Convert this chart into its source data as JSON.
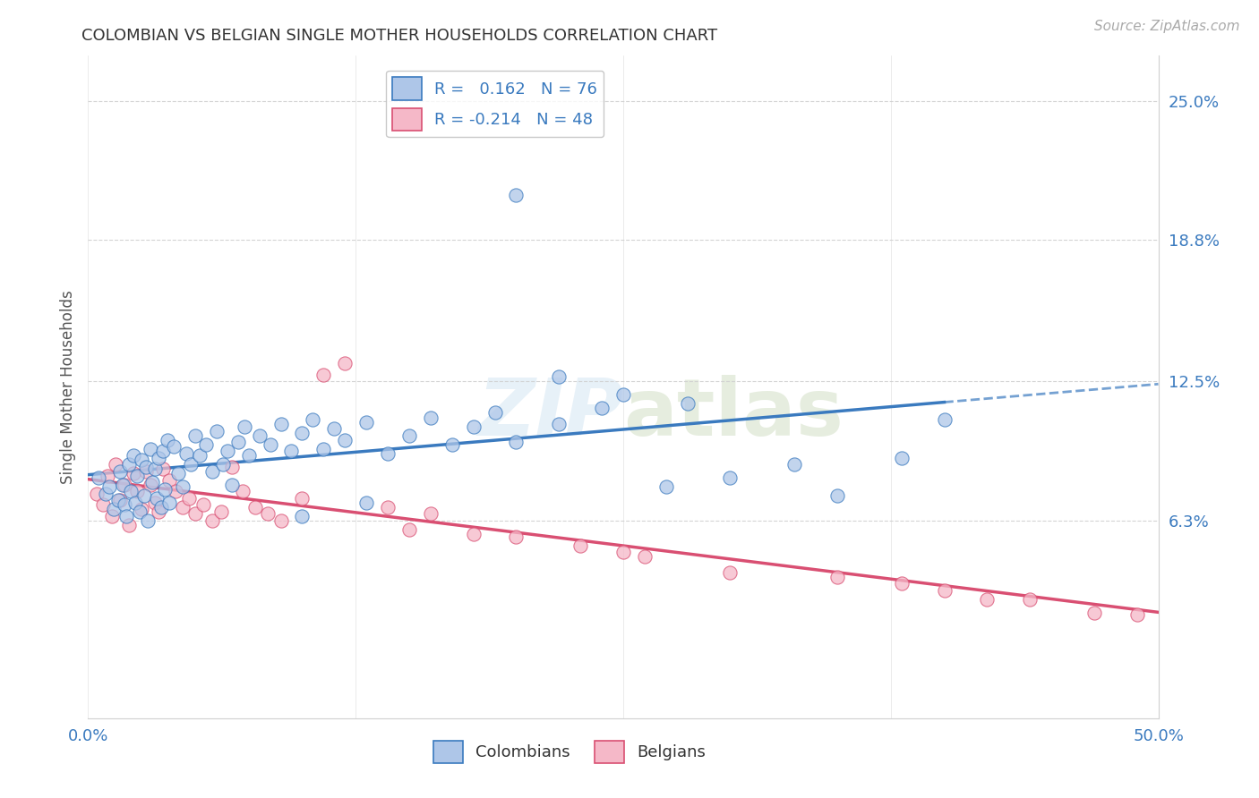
{
  "title": "COLOMBIAN VS BELGIAN SINGLE MOTHER HOUSEHOLDS CORRELATION CHART",
  "source": "Source: ZipAtlas.com",
  "ylabel": "Single Mother Households",
  "xlim": [
    0.0,
    0.5
  ],
  "ylim": [
    -0.025,
    0.27
  ],
  "ytick_labels": [
    "6.3%",
    "12.5%",
    "18.8%",
    "25.0%"
  ],
  "ytick_values": [
    0.063,
    0.125,
    0.188,
    0.25
  ],
  "xtick_positions": [
    0.0,
    0.125,
    0.25,
    0.375,
    0.5
  ],
  "colombian_R": 0.162,
  "colombian_N": 76,
  "belgian_R": -0.214,
  "belgian_N": 48,
  "colombian_color": "#aec6e8",
  "belgian_color": "#f5b8c8",
  "colombian_line_color": "#3a7abf",
  "belgian_line_color": "#d94f72",
  "legend_label_colombian": "Colombians",
  "legend_label_belgian": "Belgians",
  "background_color": "#ffffff",
  "grid_color": "#d0d0d0",
  "colombian_scatter_x": [
    0.005,
    0.008,
    0.01,
    0.012,
    0.014,
    0.015,
    0.016,
    0.017,
    0.018,
    0.019,
    0.02,
    0.021,
    0.022,
    0.023,
    0.024,
    0.025,
    0.026,
    0.027,
    0.028,
    0.029,
    0.03,
    0.031,
    0.032,
    0.033,
    0.034,
    0.035,
    0.036,
    0.037,
    0.038,
    0.04,
    0.042,
    0.044,
    0.046,
    0.048,
    0.05,
    0.052,
    0.055,
    0.058,
    0.06,
    0.063,
    0.065,
    0.067,
    0.07,
    0.073,
    0.075,
    0.08,
    0.085,
    0.09,
    0.095,
    0.1,
    0.105,
    0.11,
    0.115,
    0.12,
    0.13,
    0.14,
    0.15,
    0.16,
    0.17,
    0.18,
    0.19,
    0.2,
    0.22,
    0.24,
    0.27,
    0.3,
    0.33,
    0.35,
    0.38,
    0.4,
    0.22,
    0.25,
    0.28,
    0.1,
    0.13,
    0.2
  ],
  "colombian_scatter_y": [
    0.082,
    0.075,
    0.078,
    0.068,
    0.072,
    0.085,
    0.079,
    0.07,
    0.065,
    0.088,
    0.076,
    0.092,
    0.071,
    0.083,
    0.067,
    0.09,
    0.074,
    0.087,
    0.063,
    0.095,
    0.08,
    0.086,
    0.073,
    0.091,
    0.069,
    0.094,
    0.077,
    0.099,
    0.071,
    0.096,
    0.084,
    0.078,
    0.093,
    0.088,
    0.101,
    0.092,
    0.097,
    0.085,
    0.103,
    0.088,
    0.094,
    0.079,
    0.098,
    0.105,
    0.092,
    0.101,
    0.097,
    0.106,
    0.094,
    0.102,
    0.108,
    0.095,
    0.104,
    0.099,
    0.107,
    0.093,
    0.101,
    0.109,
    0.097,
    0.105,
    0.111,
    0.098,
    0.106,
    0.113,
    0.078,
    0.082,
    0.088,
    0.074,
    0.091,
    0.108,
    0.127,
    0.119,
    0.115,
    0.065,
    0.071,
    0.208
  ],
  "belgian_scatter_x": [
    0.004,
    0.007,
    0.009,
    0.011,
    0.013,
    0.015,
    0.017,
    0.019,
    0.021,
    0.023,
    0.025,
    0.027,
    0.029,
    0.031,
    0.033,
    0.035,
    0.038,
    0.041,
    0.044,
    0.047,
    0.05,
    0.054,
    0.058,
    0.062,
    0.067,
    0.072,
    0.078,
    0.084,
    0.09,
    0.1,
    0.11,
    0.12,
    0.14,
    0.16,
    0.18,
    0.2,
    0.23,
    0.26,
    0.3,
    0.35,
    0.4,
    0.44,
    0.47,
    0.49,
    0.15,
    0.25,
    0.38,
    0.42
  ],
  "belgian_scatter_y": [
    0.075,
    0.07,
    0.083,
    0.065,
    0.088,
    0.072,
    0.079,
    0.061,
    0.084,
    0.076,
    0.068,
    0.085,
    0.079,
    0.071,
    0.067,
    0.086,
    0.081,
    0.076,
    0.069,
    0.073,
    0.066,
    0.07,
    0.063,
    0.067,
    0.087,
    0.076,
    0.069,
    0.066,
    0.063,
    0.073,
    0.128,
    0.133,
    0.069,
    0.066,
    0.057,
    0.056,
    0.052,
    0.047,
    0.04,
    0.038,
    0.032,
    0.028,
    0.022,
    0.021,
    0.059,
    0.049,
    0.035,
    0.028
  ]
}
